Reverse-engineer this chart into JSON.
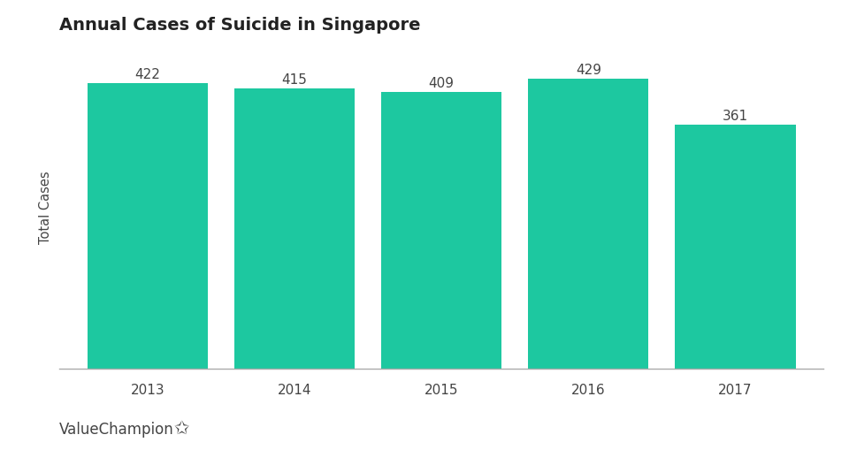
{
  "title": "Annual Cases of Suicide in Singapore",
  "ylabel": "Total Cases",
  "categories": [
    "2013",
    "2014",
    "2015",
    "2016",
    "2017"
  ],
  "values": [
    422,
    415,
    409,
    429,
    361
  ],
  "bar_color": "#1DC8A0",
  "background_color": "#ffffff",
  "title_fontsize": 14,
  "label_fontsize": 10.5,
  "tick_fontsize": 11,
  "value_fontsize": 11,
  "ylim": [
    0,
    480
  ],
  "bar_width": 0.82,
  "watermark": "ValueChampion",
  "watermark_fontsize": 12,
  "text_color": "#444444",
  "spine_color": "#aaaaaa"
}
